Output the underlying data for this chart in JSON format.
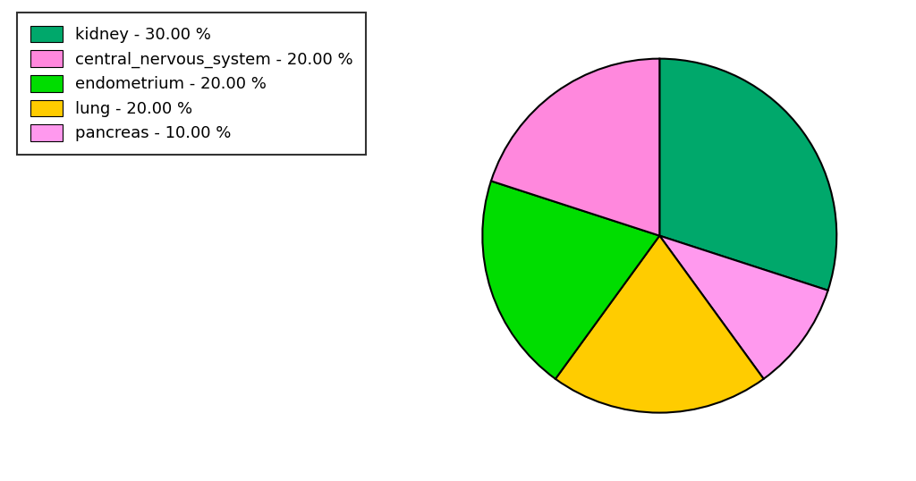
{
  "labels": [
    "kidney",
    "pancreas",
    "lung",
    "endometrium",
    "central_nervous_system"
  ],
  "values": [
    30,
    10,
    20,
    20,
    20
  ],
  "colors": [
    "#00A86B",
    "#FF99EE",
    "#FFCC00",
    "#00DD00",
    "#FF88DD"
  ],
  "legend_labels": [
    "kidney - 30.00 %",
    "central_nervous_system - 20.00 %",
    "endometrium - 20.00 %",
    "lung - 20.00 %",
    "pancreas - 10.00 %"
  ],
  "legend_colors": [
    "#00A86B",
    "#FF88DD",
    "#00DD00",
    "#FFCC00",
    "#FF99EE"
  ],
  "startangle": 90,
  "figsize": [
    10.24,
    5.38
  ],
  "dpi": 100,
  "background_color": "#ffffff",
  "edgecolor": "#000000",
  "linewidth": 1.5
}
